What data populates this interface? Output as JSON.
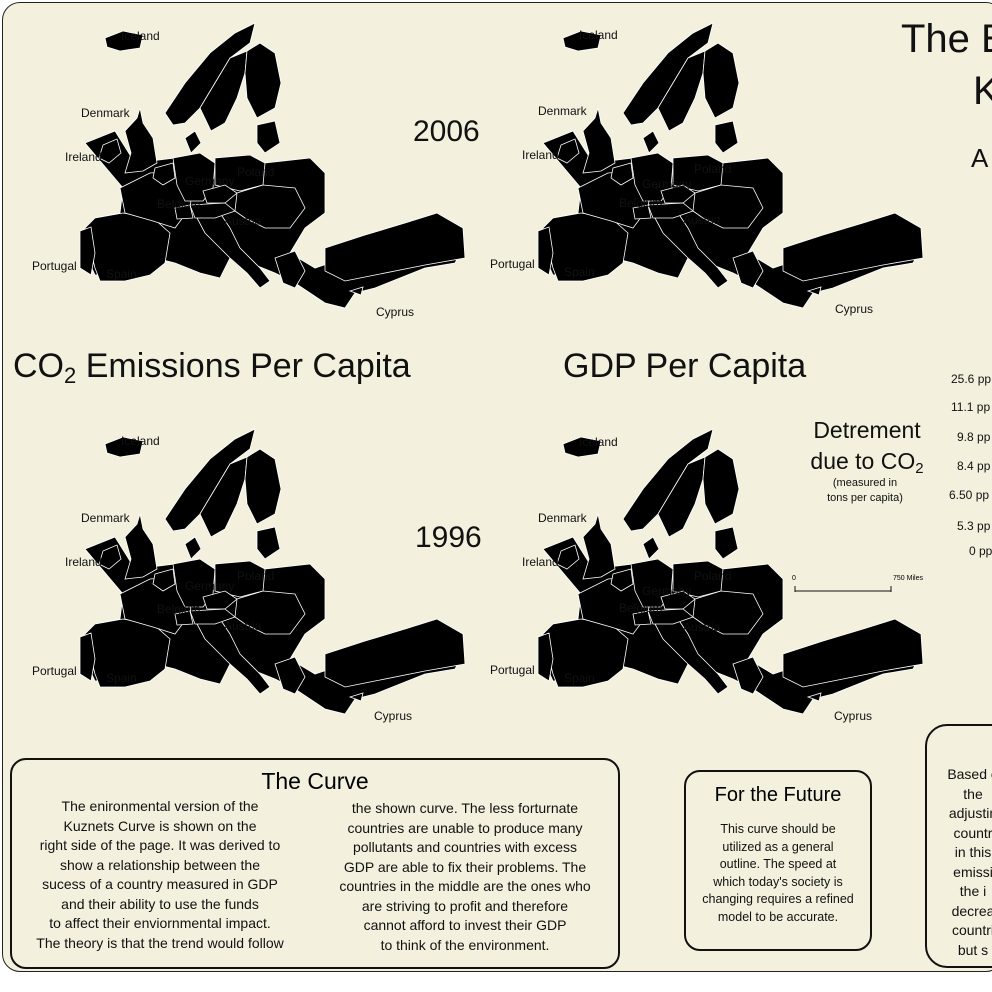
{
  "header": {
    "title_line1": "The E",
    "title_line2": "K",
    "title_line3": "A"
  },
  "years": {
    "top": "2006",
    "bottom": "1996"
  },
  "section_titles": {
    "co2_main": "CO",
    "co2_sub": "2",
    "co2_rest": " Emissions Per Capita",
    "gdp": "GDP Per Capita"
  },
  "map_labels": {
    "co2_2006": [
      "Iceland",
      "Denmark",
      "Ireland",
      "Poland",
      "Germany",
      "Belgium",
      "Austria",
      "Portugal",
      "Spain",
      "Cyprus"
    ],
    "gdp_2006": [
      "Iceland",
      "Denmark",
      "Ireland",
      "Poland",
      "Germany",
      "Belgium",
      "Austria",
      "Portugal",
      "Spain",
      "Cyprus"
    ],
    "co2_1996": [
      "Iceland",
      "Denmark",
      "Ireland",
      "Poland",
      "Germany",
      "Belgium",
      "Austria",
      "Portugal",
      "Spain",
      "Cyprus"
    ],
    "gdp_1996": [
      "Iceland",
      "Denmark",
      "Ireland",
      "Poland",
      "Germany",
      "Belgium",
      "Austria",
      "Portugal",
      "Spain",
      "Cyprus"
    ]
  },
  "legend": {
    "heading1": "Detrement",
    "heading2_main": "due to CO",
    "heading2_sub": "2",
    "sub1": "(measured in",
    "sub2": "tons per capita)",
    "values": [
      "25.6 pp",
      "11.1 pp",
      "9.8 pp",
      "8.4 pp",
      "6.50 pp",
      "5.3 pp",
      "0 pp"
    ]
  },
  "scale": {
    "start": "0",
    "end": "750",
    "unit": "Miles"
  },
  "curve_box": {
    "title": "The Curve",
    "left_lines": [
      "The enironmental version of the",
      "Kuznets Curve is shown on the",
      "right side of the page. It was derived to",
      "show a relationship between the",
      "sucess of a country measured in GDP",
      "and their ability to use the funds",
      "to affect their enviornmental impact.",
      "The theory is that the trend would follow"
    ],
    "right_lines": [
      "the shown curve. The less forturnate",
      "countries are unable to produce many",
      "pollutants and countries with excess",
      "GDP are able to fix their problems. The",
      "countries in the middle are the ones who",
      "are striving to profit and therefore",
      "cannot afford to invest their GDP",
      "to think of the environment."
    ]
  },
  "future_box": {
    "title": "For the Future",
    "lines": [
      "This curve should be",
      "utilized as a general",
      "outline. The speed at",
      "which today's society is",
      "changing requires a refined",
      "model to be accurate."
    ]
  },
  "right_box": {
    "lines": [
      "Based o",
      "the",
      "adjustin",
      "countr",
      "in this",
      "emissi",
      "the i",
      "decrea",
      "countri",
      "but s"
    ]
  },
  "colors": {
    "background": "#f3f0dd",
    "co2_scale": [
      "#f2f4ea",
      "#d8e8cf",
      "#b5dcc0",
      "#8fcfc6",
      "#5cc4e8",
      "#3a9bd8"
    ],
    "gdp_scale": [
      "#fafad2",
      "#e6efb6",
      "#b8db8c",
      "#92cc6a",
      "#6cbb55",
      "#3ea64a"
    ]
  }
}
